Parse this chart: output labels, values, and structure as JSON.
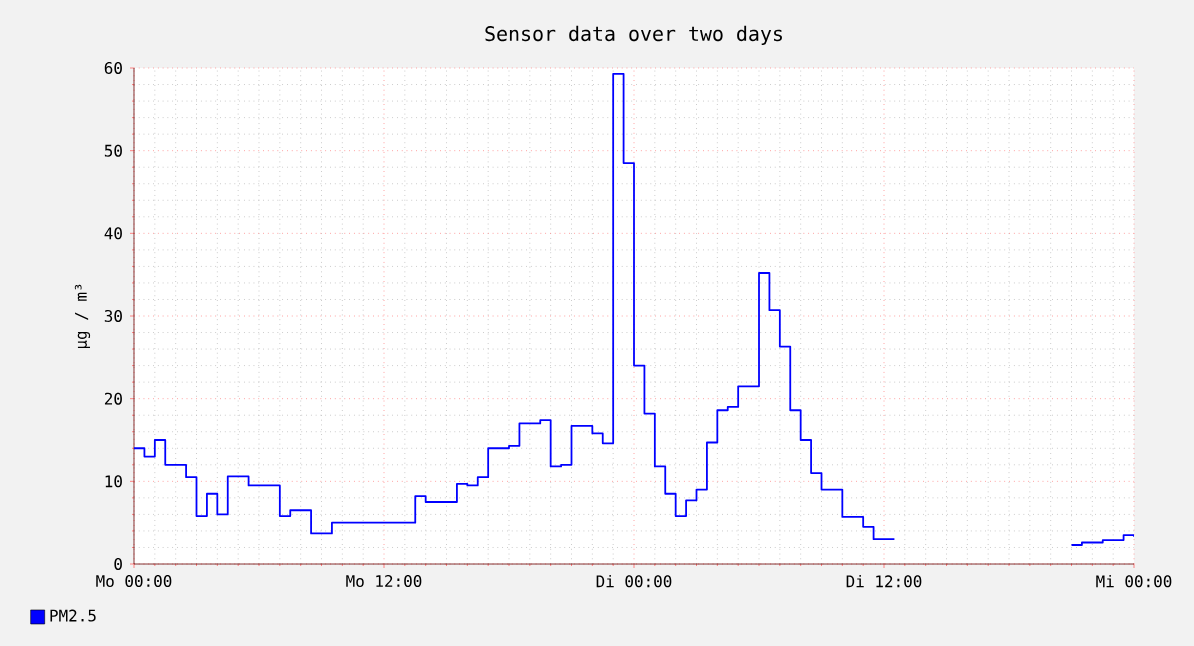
{
  "chart_data": {
    "type": "step",
    "title": "Sensor data over two days",
    "ylabel": "µg / m³",
    "categories": [
      "Mo 00:00",
      null,
      null,
      null,
      null,
      null,
      null,
      null,
      null,
      null,
      null,
      null,
      null,
      null,
      null,
      null,
      null,
      null,
      null,
      null,
      null,
      null,
      null,
      null,
      "Mo 12:00",
      null,
      null,
      null,
      null,
      null,
      null,
      null,
      null,
      null,
      null,
      null,
      null,
      null,
      null,
      null,
      null,
      null,
      null,
      null,
      null,
      null,
      null,
      null,
      "Di 00:00",
      null,
      null,
      null,
      null,
      null,
      null,
      null,
      null,
      null,
      null,
      null,
      null,
      null,
      null,
      null,
      null,
      null,
      null,
      null,
      null,
      null,
      null,
      null,
      "Di 12:00",
      null,
      null,
      null,
      null,
      null,
      null,
      null,
      null,
      null,
      null,
      null,
      null,
      null,
      null,
      null,
      null,
      null,
      null,
      null,
      null,
      null,
      null,
      null,
      "Mi 00:00"
    ],
    "ylim": [
      0,
      60
    ],
    "yticks": [
      0,
      10,
      20,
      30,
      40,
      50,
      60
    ],
    "grid": true,
    "legend": "bottom left",
    "marker": "none",
    "line_style": "solid",
    "series": [
      {
        "name": "PM2.5",
        "color": "#0000ff",
        "values": [
          14,
          13,
          15,
          12,
          12,
          10.5,
          5.8,
          8.5,
          6,
          10.6,
          10.6,
          9.5,
          9.5,
          9.5,
          5.8,
          6.5,
          6.5,
          3.7,
          3.7,
          5,
          5,
          5,
          5,
          5,
          5,
          5,
          5,
          8.2,
          7.5,
          7.5,
          7.5,
          9.7,
          9.5,
          10.5,
          14,
          14,
          14.3,
          17,
          17,
          17.4,
          11.8,
          12,
          16.7,
          16.7,
          15.8,
          14.6,
          59.3,
          48.5,
          24,
          18.2,
          11.8,
          8.5,
          5.8,
          7.7,
          9,
          14.7,
          18.6,
          19,
          21.5,
          21.5,
          35.2,
          30.7,
          26.3,
          18.6,
          15,
          11,
          9,
          9,
          5.7,
          5.7,
          4.5,
          3,
          3,
          3,
          null,
          null,
          null,
          null,
          null,
          null,
          null,
          null,
          null,
          null,
          null,
          null,
          null,
          null,
          null,
          null,
          2.3,
          2.6,
          2.6,
          2.9,
          2.9,
          3.5,
          3.3
        ]
      }
    ]
  }
}
